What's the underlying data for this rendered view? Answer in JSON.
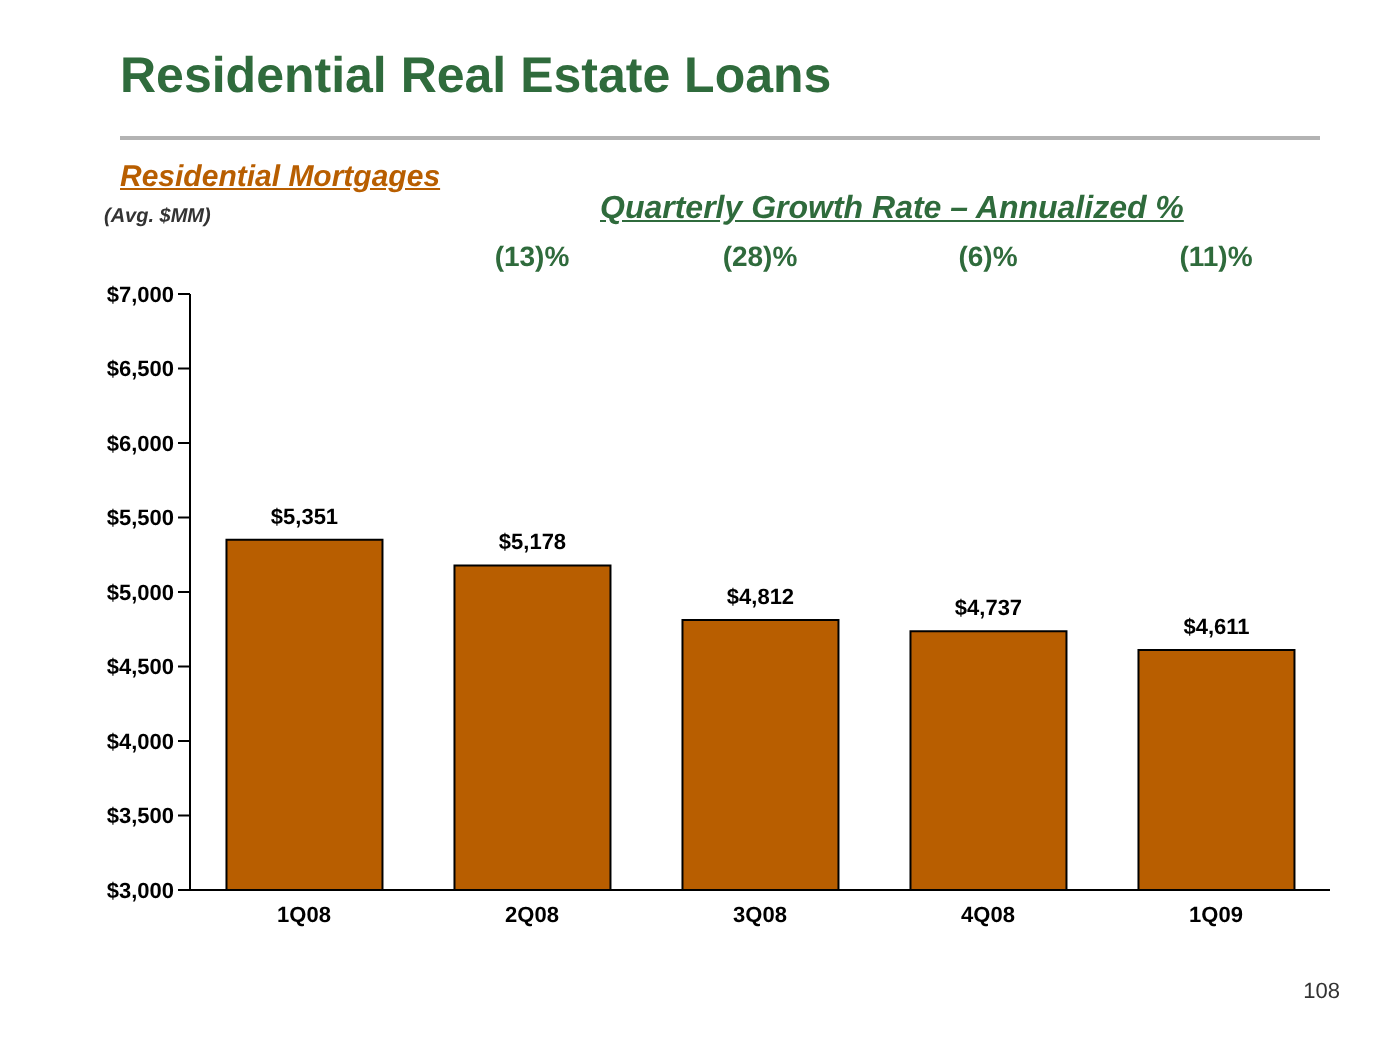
{
  "chart_data": {
    "type": "bar",
    "title": "Residential Real Estate Loans",
    "subtitle": "Residential Mortgages",
    "ylabel": "(Avg. $MM)",
    "categories": [
      "1Q08",
      "2Q08",
      "3Q08",
      "4Q08",
      "1Q09"
    ],
    "values": [
      5351,
      5178,
      4812,
      4737,
      4611
    ],
    "value_labels": [
      "$5,351",
      "$5,178",
      "$4,812",
      "$4,737",
      "$4,611"
    ],
    "color": "#b85e00",
    "ylim": [
      3000,
      7000
    ],
    "yticks": [
      {
        "value": 3000,
        "label": "$3,000"
      },
      {
        "value": 3500,
        "label": "$3,500"
      },
      {
        "value": 4000,
        "label": "$4,000"
      },
      {
        "value": 4500,
        "label": "$4,500"
      },
      {
        "value": 5000,
        "label": "$5,000"
      },
      {
        "value": 5500,
        "label": "$5,500"
      },
      {
        "value": 6000,
        "label": "$6,000"
      },
      {
        "value": 6500,
        "label": "$6,500"
      },
      {
        "value": 7000,
        "label": "$7,000"
      }
    ],
    "annotations": [
      "Quarterly Growth Rate – Annualized  %",
      "(13)%",
      "(28)%",
      "(6)%",
      "(11)%",
      "108"
    ],
    "grid": false,
    "legend": false
  }
}
